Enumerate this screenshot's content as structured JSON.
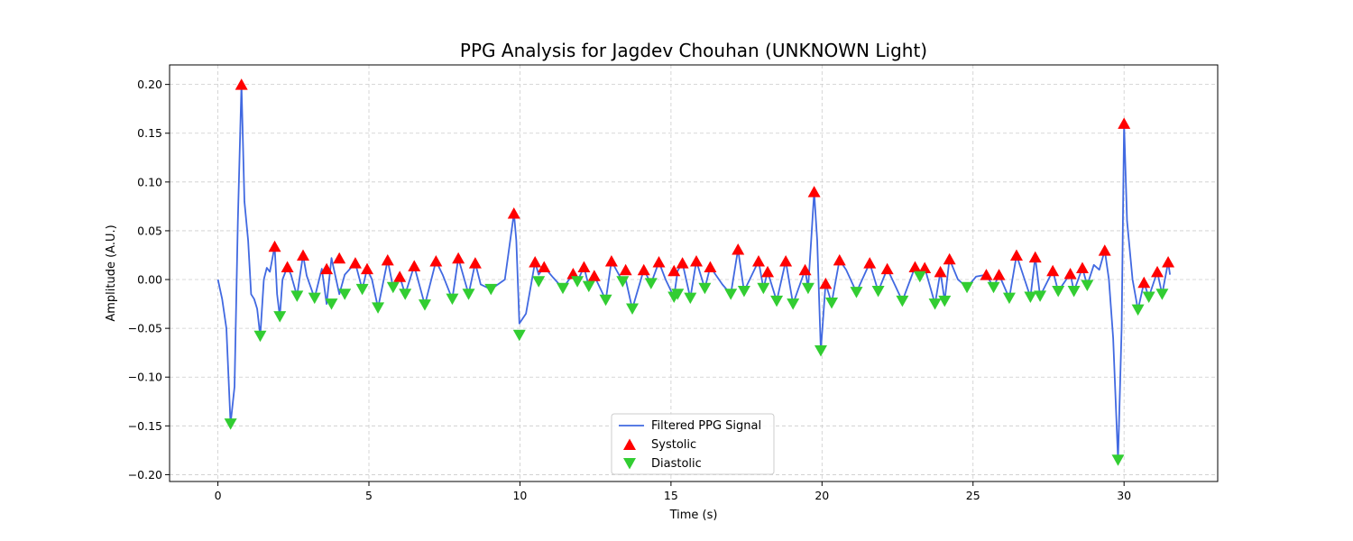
{
  "chart_data": {
    "type": "line",
    "title": "PPG Analysis for Jagdev Chouhan (UNKNOWN Light)",
    "xlabel": "Time (s)",
    "ylabel": "Amplitude (A.U.)",
    "xlim": [
      -1.6,
      33.1
    ],
    "ylim": [
      -0.207,
      0.22
    ],
    "x_ticks": [
      0,
      5,
      10,
      15,
      20,
      25,
      30
    ],
    "x_tick_labels": [
      "0",
      "5",
      "10",
      "15",
      "20",
      "25",
      "30"
    ],
    "y_ticks": [
      0.2,
      0.15,
      0.1,
      0.05,
      0.0,
      -0.05,
      -0.1,
      -0.15,
      -0.2
    ],
    "y_tick_labels": [
      "0.20",
      "0.15",
      "0.10",
      "0.05",
      "0.00",
      "−0.05",
      "−0.10",
      "−0.15",
      "−0.20"
    ],
    "grid": true,
    "legend_position": "lower center",
    "colors": {
      "signal": "#4169e1",
      "systolic": "#ff0000",
      "diastolic": "#32cd32",
      "grid": "#cccccc"
    },
    "series": [
      {
        "name": "Filtered PPG Signal",
        "kind": "line",
        "x": [
          0.0,
          0.14,
          0.28,
          0.42,
          0.55,
          0.66,
          0.78,
          0.88,
          1.0,
          1.1,
          1.2,
          1.3,
          1.4,
          1.52,
          1.62,
          1.72,
          1.88,
          1.96,
          2.05,
          2.14,
          2.3,
          2.42,
          2.62,
          2.72,
          2.82,
          2.94,
          3.2,
          3.44,
          3.6,
          3.76,
          4.02,
          4.2,
          4.55,
          4.78,
          4.94,
          5.1,
          5.3,
          5.62,
          5.8,
          6.02,
          6.2,
          6.5,
          6.85,
          7.22,
          7.44,
          7.76,
          7.96,
          8.3,
          8.52,
          8.7,
          9.04,
          9.5,
          9.8,
          9.88,
          9.98,
          10.2,
          10.5,
          10.62,
          10.8,
          11.1,
          11.42,
          11.76,
          11.9,
          12.12,
          12.28,
          12.46,
          12.84,
          13.03,
          13.4,
          13.5,
          13.72,
          14.1,
          14.34,
          14.6,
          14.82,
          15.1,
          15.22,
          15.38,
          15.64,
          15.84,
          16.12,
          16.3,
          16.7,
          16.98,
          17.22,
          17.42,
          17.9,
          18.06,
          18.2,
          18.5,
          18.8,
          19.04,
          19.44,
          19.54,
          19.64,
          19.74,
          19.84,
          19.96,
          20.12,
          20.32,
          20.58,
          20.8,
          21.14,
          21.58,
          21.86,
          22.16,
          22.66,
          23.08,
          23.24,
          23.4,
          23.74,
          23.92,
          24.06,
          24.22,
          24.5,
          24.8,
          25.1,
          25.44,
          25.68,
          25.86,
          26.2,
          26.44,
          26.9,
          27.06,
          27.22,
          27.64,
          27.82,
          28.22,
          28.34,
          28.62,
          28.78,
          29.0,
          29.18,
          29.36,
          29.5,
          29.64,
          29.8,
          29.92,
          30.0,
          30.1,
          30.28,
          30.46,
          30.66,
          30.82,
          31.1,
          31.26,
          31.46,
          31.52
        ],
        "y": [
          0.0,
          -0.02,
          -0.05,
          -0.148,
          -0.11,
          0.06,
          0.2,
          0.08,
          0.04,
          -0.015,
          -0.02,
          -0.03,
          -0.058,
          0.0,
          0.012,
          0.008,
          0.034,
          -0.015,
          -0.038,
          0.0,
          0.013,
          0.005,
          -0.017,
          0.005,
          0.025,
          0.004,
          -0.019,
          0.011,
          -0.025,
          0.022,
          -0.015,
          0.005,
          0.017,
          -0.01,
          0.011,
          0.0,
          -0.029,
          0.02,
          -0.008,
          0.003,
          -0.015,
          0.014,
          -0.026,
          0.019,
          0.005,
          -0.02,
          0.022,
          -0.015,
          0.017,
          -0.005,
          -0.01,
          0.0,
          0.068,
          0.04,
          -0.045,
          -0.035,
          0.018,
          0.005,
          0.013,
          0.002,
          -0.009,
          0.006,
          -0.002,
          0.013,
          -0.007,
          0.004,
          -0.021,
          0.019,
          -0.002,
          0.0,
          -0.03,
          0.01,
          -0.004,
          0.018,
          0.0,
          -0.018,
          0.009,
          0.017,
          -0.019,
          0.019,
          -0.009,
          0.013,
          -0.005,
          -0.015,
          0.031,
          -0.012,
          0.019,
          -0.009,
          0.008,
          -0.022,
          0.019,
          -0.025,
          0.01,
          -0.009,
          0.04,
          0.09,
          0.04,
          -0.073,
          -0.004,
          -0.024,
          0.02,
          0.01,
          -0.013,
          0.017,
          -0.012,
          0.011,
          -0.022,
          0.013,
          0.003,
          0.012,
          -0.025,
          0.008,
          -0.022,
          0.021,
          0.0,
          -0.008,
          0.003,
          0.005,
          -0.008,
          0.005,
          -0.019,
          0.025,
          -0.018,
          0.023,
          -0.017,
          0.009,
          -0.012,
          0.006,
          -0.012,
          0.012,
          -0.006,
          0.015,
          0.01,
          0.03,
          0.0,
          -0.06,
          -0.185,
          -0.05,
          0.16,
          0.06,
          0.0,
          -0.031,
          -0.003,
          -0.018,
          0.008,
          -0.015,
          0.018,
          0.005
        ]
      },
      {
        "name": "Systolic",
        "kind": "marker-up",
        "x": [
          0.78,
          1.88,
          2.3,
          2.82,
          3.6,
          4.02,
          4.55,
          4.94,
          5.62,
          6.02,
          6.5,
          7.22,
          7.96,
          8.52,
          9.8,
          10.5,
          10.8,
          11.76,
          12.12,
          12.46,
          13.03,
          13.5,
          14.1,
          14.6,
          15.1,
          15.38,
          15.84,
          16.3,
          17.22,
          17.9,
          18.2,
          18.8,
          19.44,
          19.74,
          20.12,
          20.58,
          21.58,
          22.16,
          23.08,
          23.4,
          23.92,
          24.22,
          25.44,
          25.86,
          26.44,
          27.06,
          27.64,
          28.22,
          28.62,
          29.36,
          30.0,
          30.66,
          31.1,
          31.46
        ],
        "y": [
          0.2,
          0.034,
          0.013,
          0.025,
          0.011,
          0.022,
          0.017,
          0.011,
          0.02,
          0.003,
          0.014,
          0.019,
          0.022,
          0.017,
          0.068,
          0.018,
          0.013,
          0.006,
          0.013,
          0.004,
          0.019,
          0.01,
          0.01,
          0.018,
          0.009,
          0.017,
          0.019,
          0.013,
          0.031,
          0.019,
          0.008,
          0.019,
          0.01,
          0.09,
          -0.004,
          0.02,
          0.017,
          0.011,
          0.013,
          0.012,
          0.008,
          0.021,
          0.005,
          0.005,
          0.025,
          0.023,
          0.009,
          0.006,
          0.012,
          0.03,
          0.16,
          -0.003,
          0.008,
          0.018
        ]
      },
      {
        "name": "Diastolic",
        "kind": "marker-down",
        "x": [
          0.42,
          1.4,
          2.05,
          2.62,
          3.2,
          3.76,
          4.2,
          4.78,
          5.3,
          5.8,
          6.2,
          6.85,
          7.76,
          8.3,
          9.04,
          9.98,
          10.62,
          11.42,
          11.9,
          12.28,
          12.84,
          13.4,
          13.72,
          14.34,
          15.1,
          15.22,
          15.64,
          16.12,
          16.98,
          17.42,
          18.06,
          18.5,
          19.04,
          19.54,
          19.96,
          20.32,
          21.14,
          21.86,
          22.66,
          23.24,
          23.74,
          24.06,
          24.8,
          25.68,
          26.2,
          26.9,
          27.22,
          27.82,
          28.34,
          28.78,
          29.8,
          30.46,
          30.82,
          31.26
        ],
        "y": [
          -0.148,
          -0.058,
          -0.038,
          -0.017,
          -0.019,
          -0.025,
          -0.015,
          -0.01,
          -0.029,
          -0.008,
          -0.015,
          -0.026,
          -0.02,
          -0.015,
          -0.01,
          -0.057,
          -0.002,
          -0.009,
          -0.002,
          -0.007,
          -0.021,
          -0.002,
          -0.03,
          -0.004,
          -0.018,
          -0.015,
          -0.019,
          -0.009,
          -0.015,
          -0.012,
          -0.009,
          -0.022,
          -0.025,
          -0.009,
          -0.073,
          -0.024,
          -0.013,
          -0.012,
          -0.022,
          0.003,
          -0.025,
          -0.022,
          -0.008,
          -0.008,
          -0.019,
          -0.018,
          -0.017,
          -0.012,
          -0.012,
          -0.006,
          -0.185,
          -0.031,
          -0.018,
          -0.015
        ]
      }
    ]
  }
}
